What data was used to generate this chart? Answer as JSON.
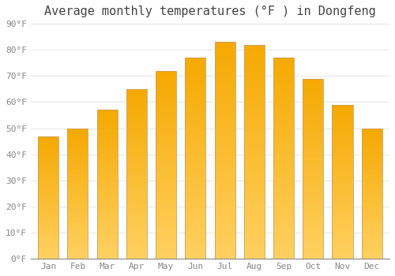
{
  "title": "Average monthly temperatures (°F ) in Dongfeng",
  "months": [
    "Jan",
    "Feb",
    "Mar",
    "Apr",
    "May",
    "Jun",
    "Jul",
    "Aug",
    "Sep",
    "Oct",
    "Nov",
    "Dec"
  ],
  "values": [
    47,
    50,
    57,
    65,
    72,
    77,
    83,
    82,
    77,
    69,
    59,
    50
  ],
  "bar_color_top": "#F5A800",
  "bar_color_bottom": "#FFD060",
  "bar_edge_color": "#C8A060",
  "ylim": [
    0,
    90
  ],
  "yticks": [
    0,
    10,
    20,
    30,
    40,
    50,
    60,
    70,
    80,
    90
  ],
  "ytick_labels": [
    "0°F",
    "10°F",
    "20°F",
    "30°F",
    "40°F",
    "50°F",
    "60°F",
    "70°F",
    "80°F",
    "90°F"
  ],
  "background_color": "#FFFFFF",
  "grid_color": "#E8E8E8",
  "title_fontsize": 11,
  "tick_fontsize": 8,
  "tick_color": "#888888",
  "font_family": "monospace",
  "bar_width": 0.7,
  "n_grad": 80
}
